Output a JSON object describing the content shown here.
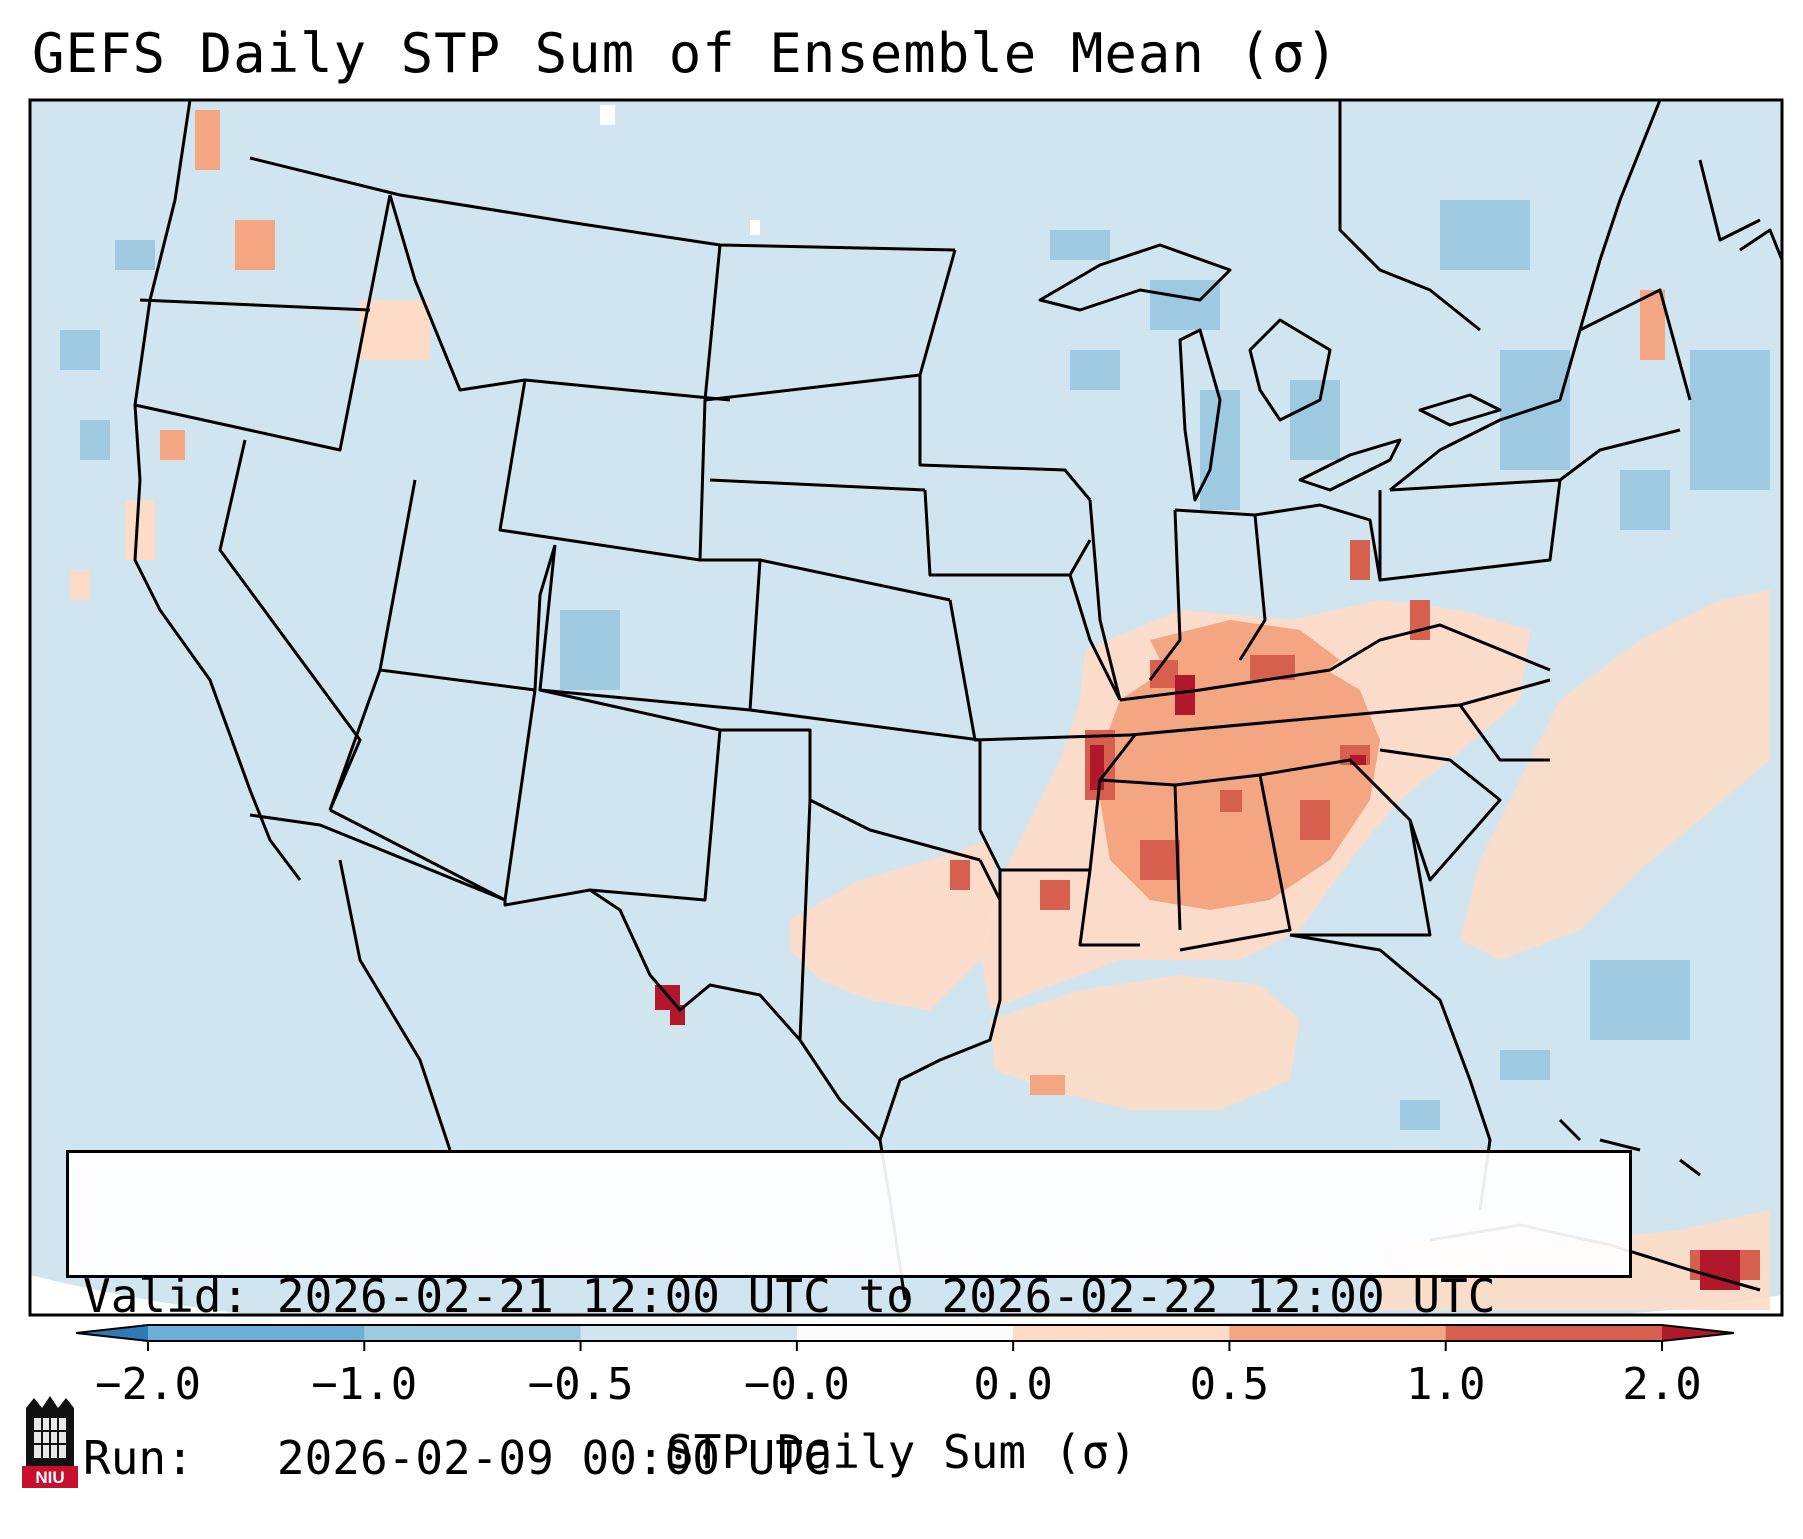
{
  "title": "GEFS Daily STP Sum of Ensemble Mean (σ)",
  "info": {
    "valid_label": "Valid:",
    "valid_value": "2026-02-21 12:00 UTC to 2026-02-22 12:00 UTC",
    "run_label": "Run:",
    "run_value": "2026-02-09 00:00 UTC"
  },
  "colorbar": {
    "label": "STP Daily Sum (σ)",
    "ticks": [
      "−2.0",
      "−1.0",
      "−0.5",
      "−0.0",
      "0.0",
      "0.5",
      "1.0",
      "2.0"
    ],
    "colors": [
      "#2c7bb6",
      "#6baed6",
      "#9ecae1",
      "#d1e5f0",
      "#fbfbfb",
      "#fddbc7",
      "#f4a582",
      "#d6604d",
      "#b2182b"
    ]
  },
  "map": {
    "background_color": "#d1e5f0",
    "region": "Contiguous United States"
  },
  "logo": {
    "text": "NIU",
    "icon": "niu-tower-logo-icon"
  }
}
